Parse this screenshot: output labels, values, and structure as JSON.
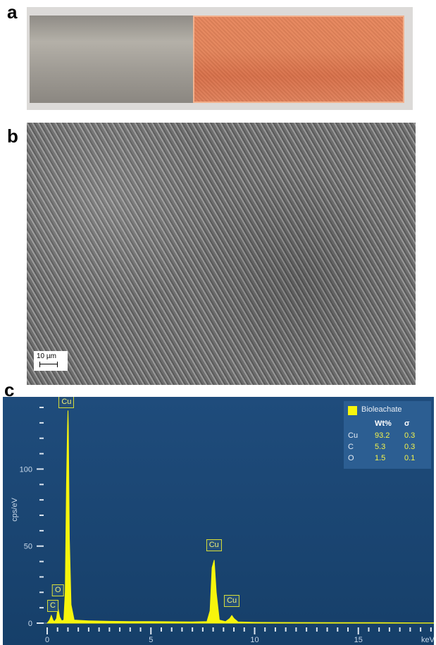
{
  "panels": {
    "a": {
      "letter": "a"
    },
    "b": {
      "letter": "b",
      "scale_bar": "10 µm"
    },
    "c": {
      "letter": "c"
    }
  },
  "chart_data": {
    "type": "line",
    "xlabel": "keV",
    "ylabel": "cps/eV",
    "xlim": [
      0,
      20
    ],
    "ylim": [
      0,
      140
    ],
    "x_ticks": [
      0,
      5,
      10,
      15
    ],
    "y_ticks": [
      0,
      50,
      100
    ],
    "legend": {
      "series": "Bioleachate",
      "color": "#f7f50c",
      "placement": "top-right"
    },
    "series": [
      {
        "name": "Bioleachate",
        "color": "#f7f50c",
        "x": [
          0,
          0.12,
          0.2,
          0.28,
          0.35,
          0.45,
          0.52,
          0.6,
          0.7,
          0.8,
          0.87,
          0.93,
          0.98,
          1.0,
          1.02,
          1.07,
          1.15,
          1.3,
          2,
          3,
          4,
          5,
          6,
          7,
          7.7,
          7.85,
          7.95,
          8.05,
          8.15,
          8.3,
          8.6,
          8.8,
          8.9,
          9.0,
          9.2,
          10,
          12,
          14,
          16,
          18,
          20
        ],
        "y": [
          0,
          2,
          5,
          2,
          1,
          3,
          10,
          4,
          1.5,
          2,
          20,
          90,
          128,
          138,
          128,
          55,
          12,
          2,
          1.5,
          1.2,
          1,
          1,
          0.9,
          0.8,
          1,
          8,
          36,
          41,
          20,
          2,
          1,
          3,
          5,
          3,
          0.8,
          0.5,
          0.4,
          0.3,
          0.3,
          0.2,
          0.2
        ]
      }
    ],
    "peak_labels": [
      {
        "label": "Cu",
        "x": 0.93,
        "y": 140
      },
      {
        "label": "O",
        "x": 0.52,
        "y": 18
      },
      {
        "label": "C",
        "x": 0.27,
        "y": 8
      },
      {
        "label": "Cu",
        "x": 8.04,
        "y": 47
      },
      {
        "label": "Cu",
        "x": 8.9,
        "y": 11
      }
    ],
    "composition_table": {
      "headers": [
        "",
        "Wt%",
        "σ"
      ],
      "rows": [
        [
          "Cu",
          "93.2",
          "0.3"
        ],
        [
          "C",
          "5.3",
          "0.3"
        ],
        [
          "O",
          "1.5",
          "0.1"
        ]
      ]
    }
  }
}
